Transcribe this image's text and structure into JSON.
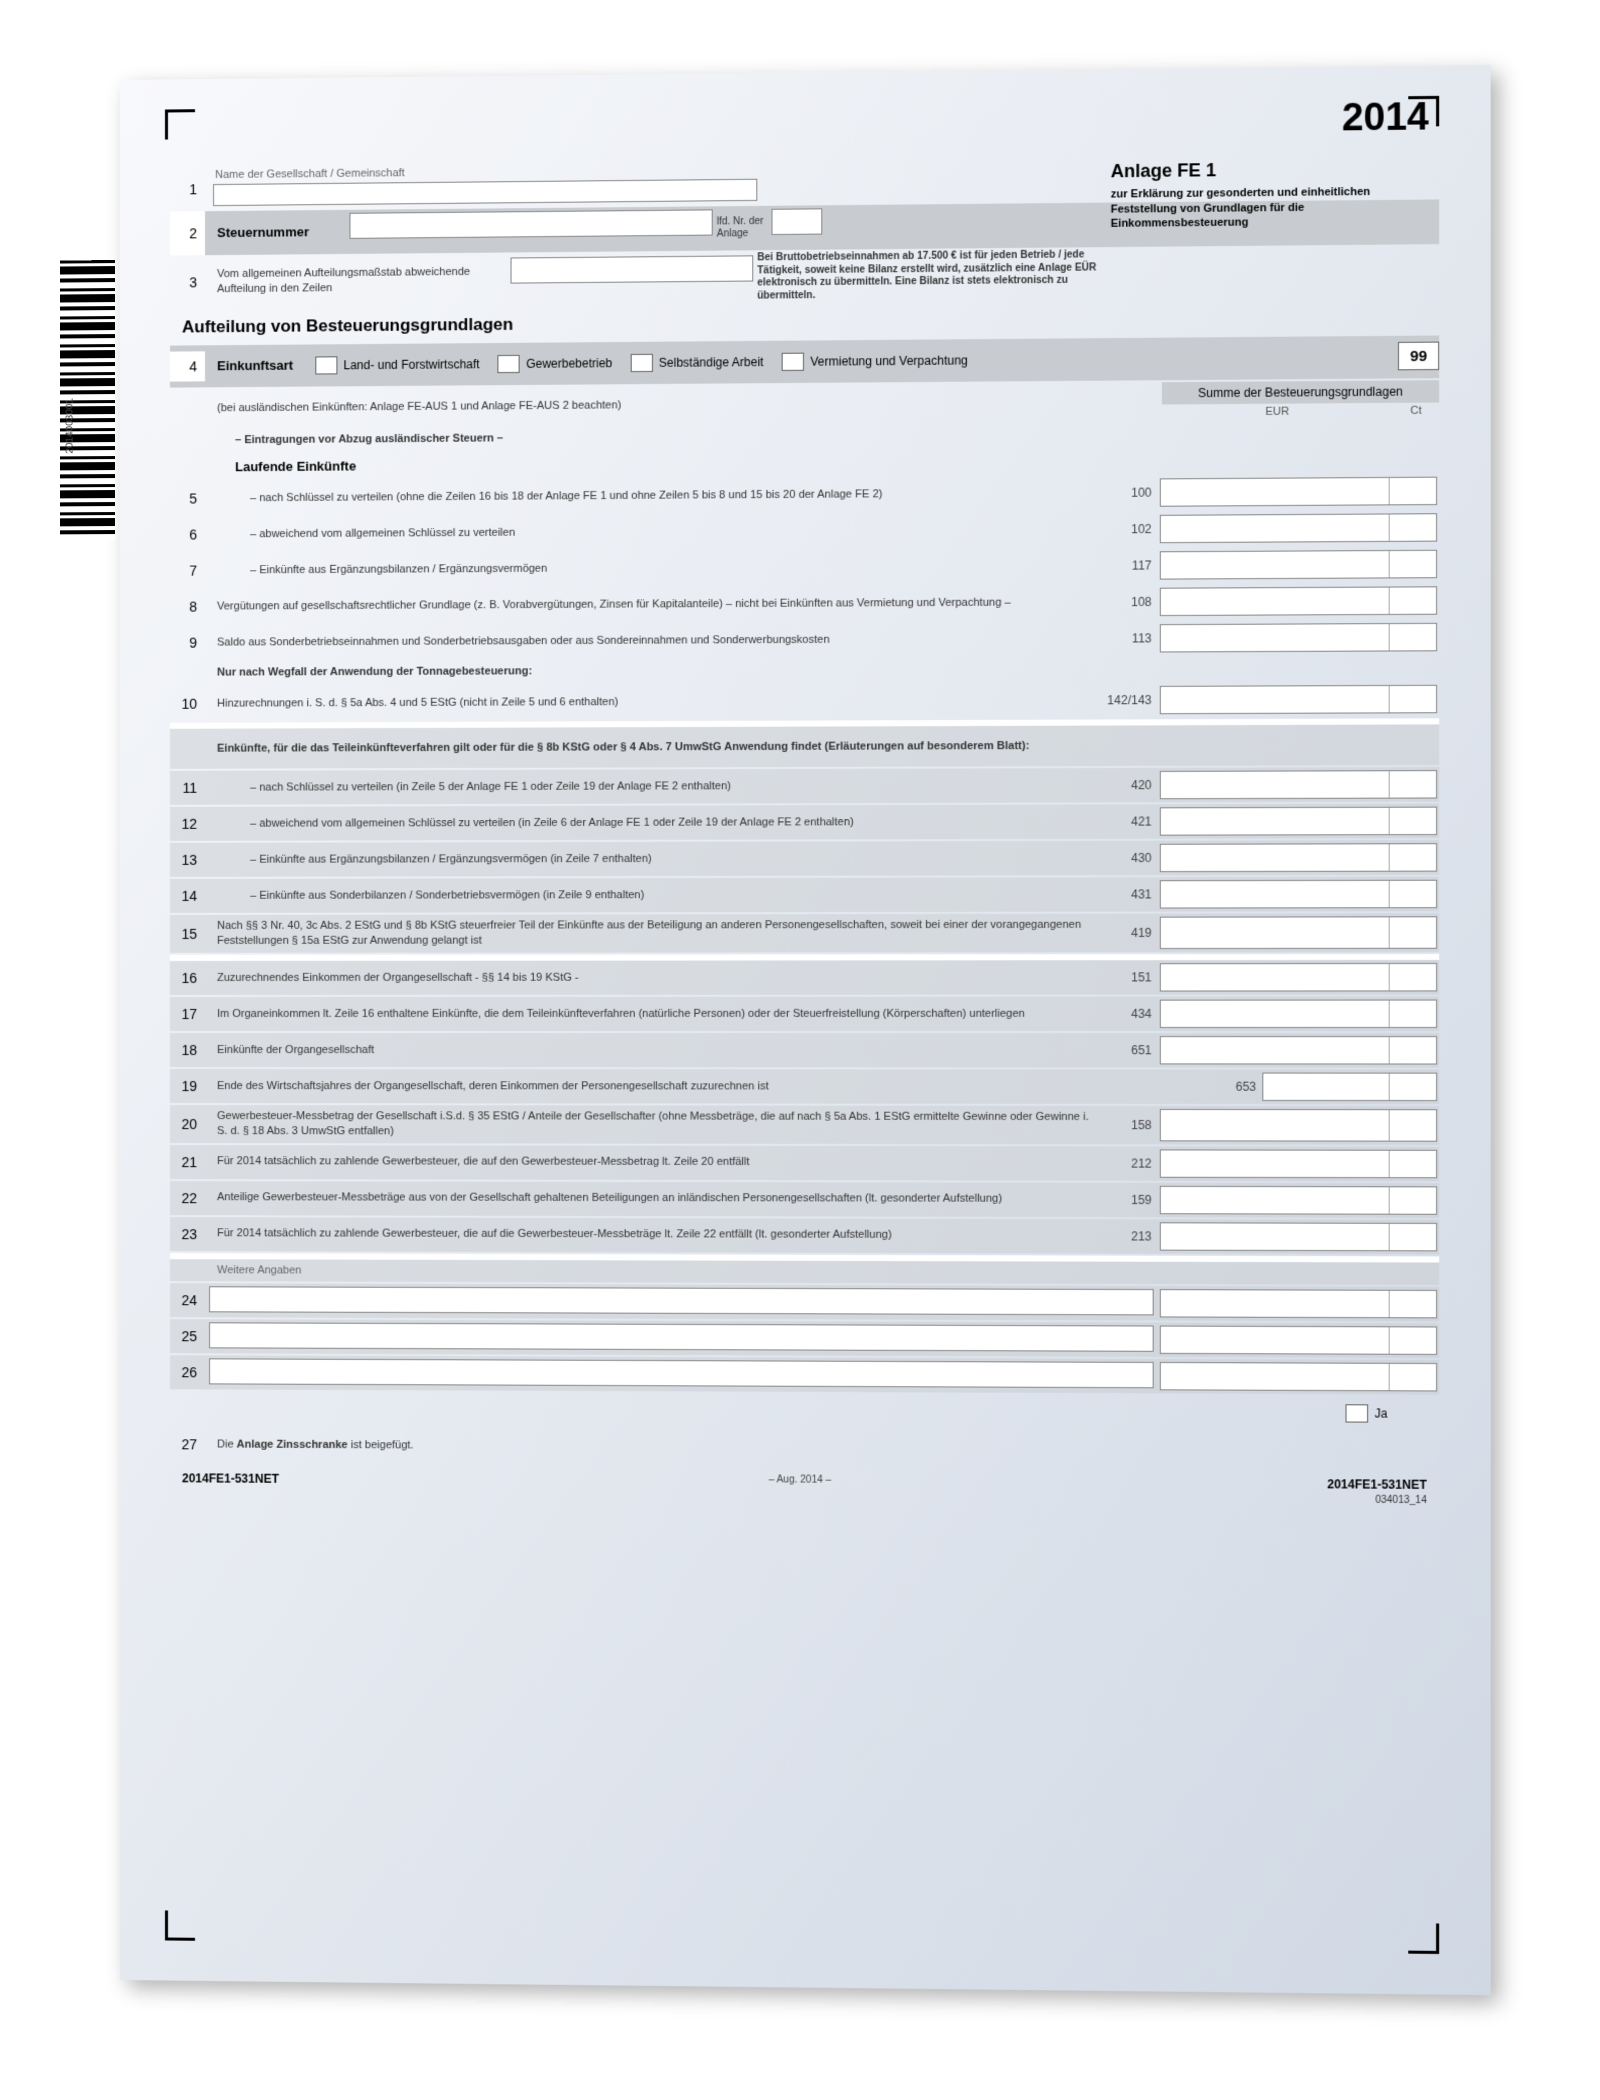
{
  "year": "2014",
  "barcode_label": "2014003001",
  "header": {
    "name_label": "Name der Gesellschaft / Gemeinschaft",
    "steuernummer": "Steuernummer",
    "lfd_nr": "lfd. Nr. der Anlage",
    "abweichend": "Vom allgemeinen Aufteilungsmaßstab abweichende Aufteilung in den Zeilen",
    "anlage_title": "Anlage FE 1",
    "anlage_sub": "zur Erklärung zur gesonderten und einheitlichen Feststellung von Grundlagen für die Einkommensbesteuerung",
    "brutto_note": "Bei Bruttobetriebseinnahmen ab 17.500 € ist für jeden Betrieb / jede Tätigkeit, soweit keine Bilanz erstellt wird, zusätzlich eine Anlage EÜR elektronisch zu übermitteln. Eine Bilanz ist stets elektronisch zu übermitteln."
  },
  "section_title": "Aufteilung von Besteuerungsgrundlagen",
  "line4": {
    "label": "Einkunftsart",
    "opts": [
      "Land- und Forstwirtschaft",
      "Gewerbebetrieb",
      "Selbständige Arbeit",
      "Vermietung und Verpachtung"
    ],
    "badge": "99"
  },
  "sum_header": "Summe der Besteuerungsgrundlagen",
  "eur": "EUR",
  "ct": "Ct",
  "note_ausl": "(bei ausländischen Einkünften: Anlage FE-AUS 1 und Anlage FE-AUS 2 beachten)",
  "note_eintr": "– Eintragungen vor Abzug ausländischer Steuern –",
  "laufende": "Laufende Einkünfte",
  "rows": [
    {
      "n": "5",
      "txt": "– nach Schlüssel zu verteilen (ohne die Zeilen 16 bis 18 der Anlage FE 1 und ohne Zeilen 5 bis 8 und 15 bis 20 der Anlage FE 2)",
      "code": "100"
    },
    {
      "n": "6",
      "txt": "– abweichend vom allgemeinen Schlüssel zu verteilen",
      "code": "102"
    },
    {
      "n": "7",
      "txt": "– Einkünfte aus Ergänzungsbilanzen / Ergänzungsvermögen",
      "code": "117"
    },
    {
      "n": "8",
      "txt": "Vergütungen auf gesellschaftsrechtlicher Grundlage (z. B. Vorabvergütungen, Zinsen für Kapitalanteile) – nicht bei Einkünften aus Vermietung und Verpachtung –",
      "code": "108"
    },
    {
      "n": "9",
      "txt": "Saldo aus Sonderbetriebseinnahmen und Sonderbetriebsausgaben oder aus Sondereinnahmen und Sonderwerbungskosten",
      "code": "113"
    }
  ],
  "tonnage_note": "Nur nach Wegfall der Anwendung der Tonnagebesteuerung:",
  "row10": {
    "n": "10",
    "txt": "Hinzurechnungen i. S. d. § 5a Abs. 4 und 5 EStG (nicht in Zeile 5 und 6 enthalten)",
    "code": "142/143"
  },
  "block2_header": "Einkünfte, für die das Teileinkünfteverfahren gilt oder für die § 8b KStG oder § 4 Abs. 7 UmwStG Anwendung findet (Erläuterungen auf besonderem Blatt):",
  "rows2": [
    {
      "n": "11",
      "txt": "– nach Schlüssel zu verteilen (in Zeile 5 der Anlage FE 1 oder Zeile 19 der Anlage FE 2 enthalten)",
      "code": "420"
    },
    {
      "n": "12",
      "txt": "– abweichend vom allgemeinen Schlüssel zu verteilen (in Zeile 6 der Anlage FE 1 oder Zeile 19 der Anlage FE 2 enthalten)",
      "code": "421"
    },
    {
      "n": "13",
      "txt": "– Einkünfte aus Ergänzungsbilanzen / Ergänzungsvermögen (in Zeile 7 enthalten)",
      "code": "430"
    },
    {
      "n": "14",
      "txt": "– Einkünfte aus Sonderbilanzen / Sonderbetriebsvermögen (in Zeile 9 enthalten)",
      "code": "431"
    },
    {
      "n": "15",
      "txt": "Nach §§ 3 Nr. 40, 3c Abs. 2 EStG und § 8b KStG steuerfreier Teil der Einkünfte aus der Beteiligung an anderen Personengesellschaften, soweit bei einer der vorangegangenen Feststellungen § 15a EStG zur Anwendung gelangt ist",
      "code": "419"
    }
  ],
  "rows3": [
    {
      "n": "16",
      "txt": "Zuzurechnendes Einkommen der Organgesellschaft - §§ 14 bis 19 KStG -",
      "code": "151"
    },
    {
      "n": "17",
      "txt": "Im Organeinkommen lt. Zeile 16 enthaltene Einkünfte, die dem Teileinkünfteverfahren (natürliche Personen) oder der Steuerfreistellung (Körperschaften) unterliegen",
      "code": "434"
    },
    {
      "n": "18",
      "txt": "Einkünfte der Organgesellschaft",
      "code": "651"
    },
    {
      "n": "19",
      "txt": "Ende des Wirtschaftsjahres der Organgesellschaft, deren Einkommen der Personengesellschaft zuzurechnen ist",
      "code": "653",
      "short": true
    },
    {
      "n": "20",
      "txt": "Gewerbesteuer-Messbetrag der Gesellschaft i.S.d. § 35 EStG / Anteile der Gesellschafter (ohne Messbeträge, die auf nach § 5a Abs. 1 EStG ermittelte Gewinne oder Gewinne i. S. d. § 18 Abs. 3 UmwStG entfallen)",
      "code": "158"
    },
    {
      "n": "21",
      "txt": "Für 2014 tatsächlich zu zahlende Gewerbesteuer, die auf den Gewerbesteuer-Messbetrag lt. Zeile 20 entfällt",
      "code": "212"
    },
    {
      "n": "22",
      "txt": "Anteilige Gewerbesteuer-Messbeträge aus von der Gesellschaft gehaltenen Beteiligungen an inländischen Personengesellschaften (lt. gesonderter Aufstellung)",
      "code": "159"
    },
    {
      "n": "23",
      "txt": "Für 2014 tatsächlich zu zahlende Gewerbesteuer, die auf die Gewerbesteuer-Messbeträge lt. Zeile 22 entfällt (lt. gesonderter Aufstellung)",
      "code": "213"
    }
  ],
  "weitere": "Weitere Angaben",
  "rows4": [
    {
      "n": "24"
    },
    {
      "n": "25"
    },
    {
      "n": "26"
    }
  ],
  "ja": "Ja",
  "row27": {
    "n": "27",
    "txt": "Die Anlage Zinsschranke ist beigefügt."
  },
  "footer": {
    "left": "2014FE1-531NET",
    "center": "– Aug. 2014 –",
    "right": "2014FE1-531NET",
    "rightsub": "034013_14"
  }
}
